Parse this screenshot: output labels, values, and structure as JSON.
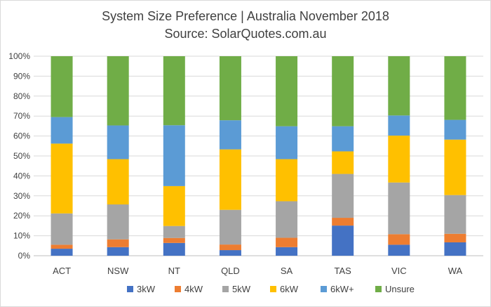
{
  "chart_data": {
    "type": "bar",
    "stacked": true,
    "title": "System Size Preference  | Australia November 2018",
    "subtitle": "Source: SolarQuotes.com.au",
    "xlabel": "",
    "ylabel": "",
    "ylim": [
      0,
      100
    ],
    "y_tick_labels": [
      "0%",
      "10%",
      "20%",
      "30%",
      "40%",
      "50%",
      "60%",
      "70%",
      "80%",
      "90%",
      "100%"
    ],
    "grid": true,
    "legend_position": "bottom",
    "categories": [
      "ACT",
      "NSW",
      "NT",
      "QLD",
      "SA",
      "TAS",
      "VIC",
      "WA"
    ],
    "series": [
      {
        "name": "3kW",
        "color": "#4472c4",
        "values": [
          3.5,
          4.3,
          6.4,
          2.8,
          4.3,
          15.1,
          5.5,
          6.7
        ]
      },
      {
        "name": "4kW",
        "color": "#ed7d31",
        "values": [
          2.0,
          3.9,
          2.5,
          2.8,
          4.7,
          3.9,
          5.3,
          4.3
        ]
      },
      {
        "name": "5kW",
        "color": "#a5a5a5",
        "values": [
          15.7,
          17.5,
          6.0,
          17.4,
          18.3,
          22.0,
          25.9,
          19.4
        ]
      },
      {
        "name": "6kW",
        "color": "#ffc000",
        "values": [
          35.0,
          22.7,
          20.0,
          30.3,
          21.1,
          11.3,
          23.5,
          27.8
        ]
      },
      {
        "name": "6kW+",
        "color": "#5b9bd5",
        "values": [
          13.3,
          16.9,
          30.5,
          14.6,
          16.5,
          12.6,
          10.1,
          9.9
        ]
      },
      {
        "name": "Unsure",
        "color": "#70ad47",
        "values": [
          30.5,
          34.7,
          34.6,
          32.1,
          35.1,
          35.1,
          29.7,
          31.9
        ]
      }
    ]
  }
}
